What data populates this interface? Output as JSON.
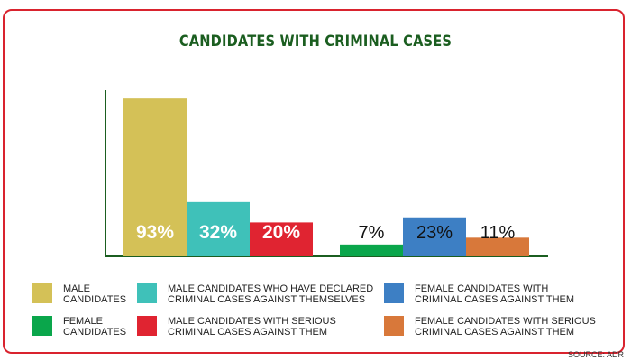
{
  "chart_data": {
    "type": "bar",
    "title": "CANDIDATES WITH CRIMINAL CASES",
    "xlabel": "",
    "ylabel": "",
    "ylim": [
      0,
      100
    ],
    "categories": [
      "MALE CANDIDATES",
      "MALE CANDIDATES WHO HAVE DECLARED CRIMINAL CASES AGAINST THEMSELVES",
      "MALE CANDIDATES WITH SERIOUS CRIMINAL CASES AGAINST THEM",
      "FEMALE CANDIDATES",
      "FEMALE CANDIDATES WITH CRIMINAL CASES AGAINST THEM",
      "FEMALE CANDIDATES WITH SERIOUS CRIMINAL CASES AGAINST THEM"
    ],
    "values": [
      93,
      32,
      20,
      7,
      23,
      11
    ],
    "value_labels": [
      "93%",
      "32%",
      "20%",
      "7%",
      "23%",
      "11%"
    ],
    "colors": [
      "#d4c157",
      "#3fc1b9",
      "#e02431",
      "#0aa64b",
      "#3d7fc4",
      "#d8783a"
    ],
    "grid": false,
    "legend_position": "bottom"
  },
  "title": "CANDIDATES WITH CRIMINAL CASES",
  "legend": [
    {
      "line1": "MALE",
      "line2": "CANDIDATES",
      "color": "#d4c157"
    },
    {
      "line1": "MALE CANDIDATES WHO HAVE DECLARED",
      "line2": "CRIMINAL CASES AGAINST THEMSELVES",
      "color": "#3fc1b9"
    },
    {
      "line1": "FEMALE CANDIDATES WITH",
      "line2": "CRIMINAL CASES AGAINST THEM",
      "color": "#3d7fc4"
    },
    {
      "line1": "FEMALE",
      "line2": "CANDIDATES",
      "color": "#0aa64b"
    },
    {
      "line1": "MALE CANDIDATES WITH SERIOUS",
      "line2": "CRIMINAL CASES AGAINST THEM",
      "color": "#e02431"
    },
    {
      "line1": "FEMALE CANDIDATES WITH SERIOUS",
      "line2": "CRIMINAL CASES AGAINST THEM",
      "color": "#d8783a"
    }
  ],
  "source": "SOURCE: ADR"
}
